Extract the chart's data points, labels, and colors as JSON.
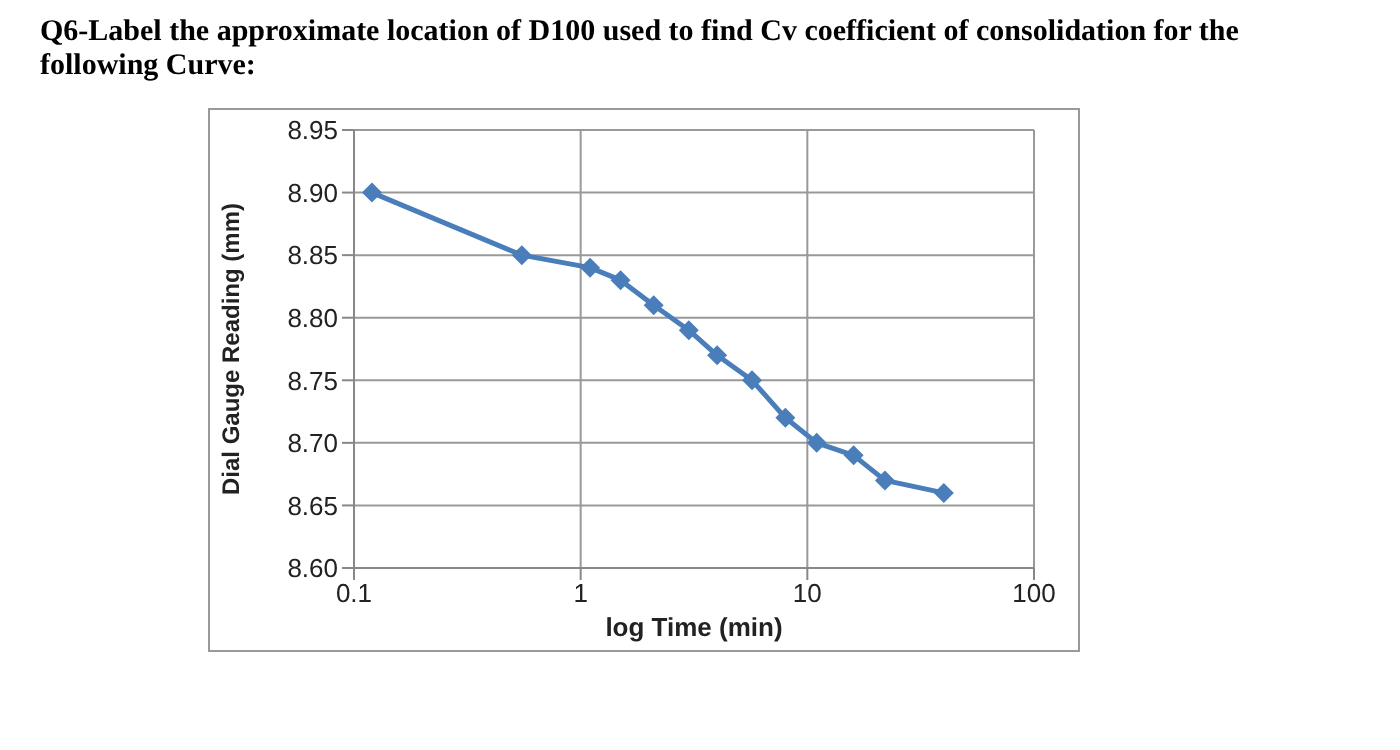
{
  "chart_data": {
    "type": "line",
    "title": "Q6-Label the approximate location of D100 used to find Cv coefficient of consolidation for the following Curve:",
    "xlabel": "log Time (min)",
    "ylabel": "Dial Gauge Reading (mm)",
    "x": [
      0.12,
      0.55,
      1.1,
      1.5,
      2.1,
      3,
      4,
      5.7,
      8,
      11,
      16,
      22,
      40
    ],
    "series": [
      {
        "color": "#4a7ebb",
        "values": [
          8.9,
          8.85,
          8.84,
          8.83,
          8.81,
          8.79,
          8.77,
          8.75,
          8.72,
          8.7,
          8.69,
          8.67,
          8.66
        ]
      }
    ],
    "log": "x",
    "xlim": [
      0.1,
      100
    ],
    "xticks": [
      0.1,
      1,
      10,
      100
    ],
    "ylim": [
      8.6,
      8.95
    ],
    "yticks": [
      {
        "value": 8.6,
        "label": "8.60"
      },
      {
        "value": 8.65,
        "label": "8.65"
      },
      {
        "value": 8.7,
        "label": "8.70"
      },
      {
        "value": 8.75,
        "label": "8.75"
      },
      {
        "value": 8.8,
        "label": "8.80"
      },
      {
        "value": 8.85,
        "label": "8.85"
      },
      {
        "value": 8.9,
        "label": "8.90"
      },
      {
        "value": 8.95,
        "label": "8.95"
      }
    ],
    "grid": true,
    "marker": "diamond",
    "line_style": "solid"
  }
}
